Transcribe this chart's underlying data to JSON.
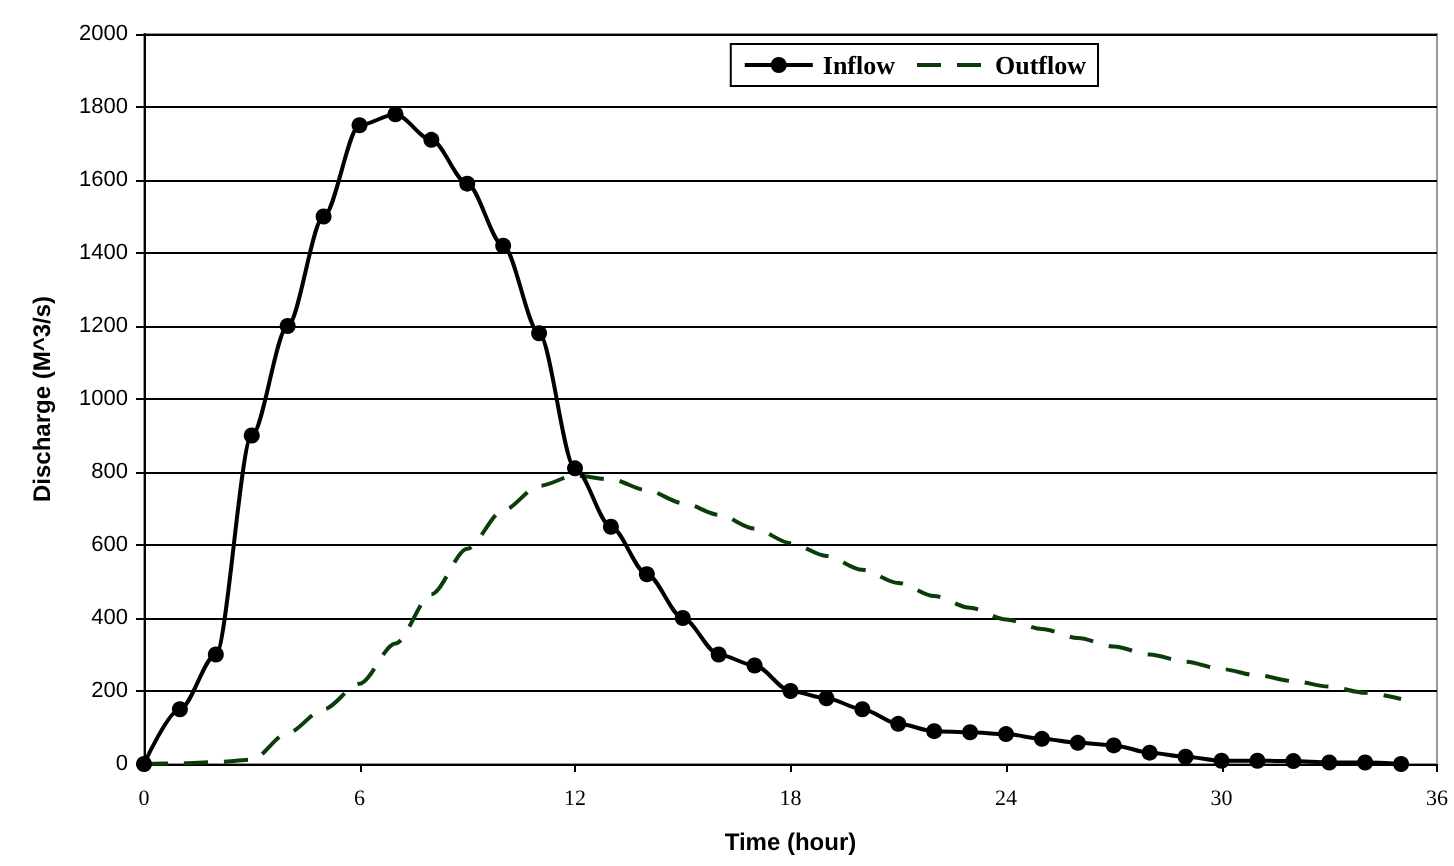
{
  "chart_data": {
    "type": "line",
    "xlabel": "Time (hour)",
    "ylabel": "Discharge (M^3/s)",
    "x": [
      0,
      1,
      2,
      3,
      4,
      5,
      6,
      7,
      8,
      9,
      10,
      11,
      12,
      13,
      14,
      15,
      16,
      17,
      18,
      19,
      20,
      21,
      22,
      23,
      24,
      25,
      26,
      27,
      28,
      29,
      30,
      31,
      32,
      33,
      34,
      35
    ],
    "series": [
      {
        "name": "Inflow",
        "color": "#000000",
        "marker": "circle",
        "line_style": "solid",
        "values": [
          0,
          150,
          300,
          900,
          1200,
          1500,
          1750,
          1780,
          1710,
          1590,
          1420,
          1180,
          810,
          650,
          520,
          400,
          300,
          270,
          200,
          180,
          150,
          110,
          90,
          87,
          82,
          69,
          58,
          51,
          31,
          20,
          9,
          9,
          8,
          4,
          4,
          0
        ]
      },
      {
        "name": "Outflow",
        "color": "#0b3d0b",
        "marker": "none",
        "line_style": "dashed",
        "values": [
          0,
          2,
          5,
          12,
          85,
          150,
          220,
          330,
          465,
          590,
          695,
          762,
          790,
          780,
          750,
          715,
          683,
          645,
          605,
          570,
          532,
          496,
          460,
          428,
          396,
          370,
          345,
          322,
          300,
          280,
          260,
          243,
          227,
          212,
          195,
          178
        ]
      }
    ],
    "xlim": [
      0,
      36
    ],
    "xticks": [
      0,
      6,
      12,
      18,
      24,
      30,
      36
    ],
    "ylim": [
      0,
      2000
    ],
    "yticks": [
      0,
      200,
      400,
      600,
      800,
      1000,
      1200,
      1400,
      1600,
      1800,
      2000
    ],
    "grid": "y",
    "legend": "top right"
  }
}
